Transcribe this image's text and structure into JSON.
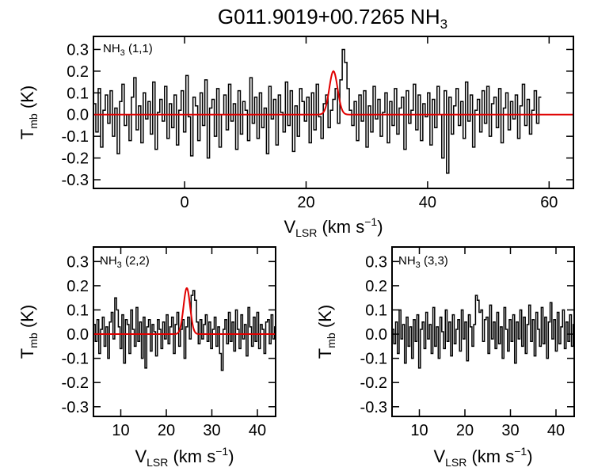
{
  "figure_title": {
    "text": "G011.9019+00.7265 NH",
    "sub": "3"
  },
  "chart_data": [
    {
      "type": "line",
      "panel": "NH3 (1,1)",
      "label": {
        "main": "NH",
        "sub": "3",
        "rest": " (1,1)"
      },
      "xlabel": {
        "main": "V",
        "sub": "LSR",
        "rest": " (km s",
        "sup": "−1",
        "close": ")"
      },
      "ylabel": {
        "main": "T",
        "sub": "mb",
        "rest": " (K)"
      },
      "xlim": [
        -15,
        64
      ],
      "ylim": [
        -0.34,
        0.36
      ],
      "xticks": [
        0,
        20,
        40,
        60
      ],
      "yticks": [
        -0.3,
        -0.2,
        -0.1,
        0.0,
        0.1,
        0.2,
        0.3
      ],
      "spectrum": {
        "name": "observed spectrum",
        "color": "#000000",
        "x_start": -15,
        "x_step": 0.39,
        "values": [
          0.05,
          -0.08,
          0.12,
          -0.15,
          0.02,
          0.09,
          -0.04,
          0.11,
          -0.1,
          0.03,
          -0.18,
          0.06,
          0.14,
          -0.05,
          0.0,
          -0.12,
          0.08,
          0.17,
          -0.07,
          0.04,
          -0.13,
          0.1,
          -0.02,
          0.06,
          -0.09,
          0.15,
          -0.16,
          0.01,
          0.07,
          -0.03,
          0.13,
          -0.11,
          0.05,
          -0.06,
          0.09,
          -0.14,
          0.02,
          0.11,
          -0.08,
          0.18,
          -0.01,
          -0.19,
          0.08,
          0.04,
          -0.12,
          0.1,
          -0.05,
          0.16,
          -0.2,
          0.03,
          0.07,
          -0.1,
          0.12,
          -0.15,
          0.0,
          0.09,
          -0.07,
          0.14,
          -0.03,
          0.05,
          -0.16,
          0.11,
          -0.09,
          0.06,
          0.02,
          -0.12,
          0.17,
          -0.04,
          0.08,
          -0.11,
          0.1,
          -0.06,
          0.03,
          -0.18,
          0.13,
          -0.02,
          0.07,
          -0.14,
          0.09,
          0.01,
          -0.08,
          0.15,
          -0.05,
          0.11,
          -0.17,
          0.04,
          -0.1,
          0.12,
          0.06,
          -0.03,
          0.08,
          -0.13,
          0.1,
          -0.07,
          0.14,
          -0.01,
          -0.11,
          0.05,
          0.09,
          -0.06,
          0.02,
          0.07,
          0.12,
          -0.04,
          0.16,
          0.3,
          0.24,
          0.12,
          0.02,
          -0.05,
          0.06,
          -0.12,
          0.09,
          -0.03,
          0.11,
          -0.15,
          0.04,
          -0.08,
          0.13,
          -0.02,
          0.07,
          -0.1,
          0.01,
          0.1,
          -0.13,
          0.06,
          -0.05,
          0.12,
          -0.09,
          0.03,
          0.08,
          -0.16,
          0.11,
          -0.04,
          0.02,
          0.14,
          -0.07,
          0.09,
          -0.12,
          0.05,
          -0.01,
          0.1,
          -0.14,
          0.07,
          -0.06,
          0.13,
          0.0,
          -0.2,
          0.11,
          -0.27,
          0.08,
          -0.09,
          0.04,
          0.12,
          -0.05,
          0.06,
          -0.11,
          0.15,
          -0.03,
          0.09,
          -0.15,
          0.02,
          0.07,
          -0.08,
          0.11,
          -0.04,
          0.13,
          -0.1,
          0.05,
          0.08,
          -0.06,
          0.12,
          -0.13,
          0.03,
          0.1,
          -0.07,
          0.06,
          -0.02,
          0.09,
          -0.11,
          0.04,
          0.14,
          -0.05,
          0.07,
          -0.09,
          0.02,
          0.11,
          -0.04,
          0.08
        ]
      },
      "fit": {
        "name": "Gaussian fit",
        "color": "#e00000",
        "amplitude": 0.2,
        "center": 24.5,
        "fwhm": 1.6
      }
    },
    {
      "type": "line",
      "panel": "NH3 (2,2)",
      "label": {
        "main": "NH",
        "sub": "3",
        "rest": " (2,2)"
      },
      "xlabel": {
        "main": "V",
        "sub": "LSR",
        "rest": " (km s",
        "sup": "−1",
        "close": ")"
      },
      "ylabel": {
        "main": "T",
        "sub": "mb",
        "rest": " (K)"
      },
      "xlim": [
        4,
        44
      ],
      "ylim": [
        -0.34,
        0.36
      ],
      "xticks": [
        10,
        20,
        30,
        40
      ],
      "yticks": [
        -0.3,
        -0.2,
        -0.1,
        0.0,
        0.1,
        0.2,
        0.3
      ],
      "spectrum": {
        "name": "observed spectrum",
        "color": "#000000",
        "x_start": 4,
        "x_step": 0.39,
        "values": [
          0.04,
          -0.03,
          0.06,
          -0.08,
          0.02,
          0.07,
          -0.05,
          0.03,
          -0.1,
          0.05,
          0.09,
          -0.02,
          0.15,
          0.1,
          0.03,
          -0.06,
          0.08,
          -0.12,
          0.06,
          0.04,
          -0.08,
          0.1,
          0.02,
          -0.05,
          0.11,
          -0.03,
          0.05,
          -0.1,
          0.07,
          -0.14,
          0.03,
          0.06,
          -0.07,
          0.04,
          0.01,
          -0.09,
          0.06,
          0.02,
          -0.06,
          0.05,
          -0.02,
          0.08,
          -0.04,
          0.03,
          0.07,
          -0.08,
          0.04,
          0.09,
          -0.05,
          0.02,
          0.06,
          -0.1,
          0.03,
          0.07,
          -0.02,
          0.16,
          0.18,
          0.14,
          0.05,
          -0.04,
          0.06,
          -0.02,
          0.04,
          0.08,
          -0.03,
          0.05,
          -0.06,
          0.02,
          0.07,
          -0.05,
          0.03,
          -0.08,
          -0.15,
          0.02,
          0.06,
          -0.04,
          0.09,
          -0.03,
          0.05,
          -0.07,
          0.1,
          0.02,
          -0.06,
          0.08,
          -0.02,
          0.04,
          -0.09,
          0.11,
          0.03,
          -0.05,
          0.07,
          -0.03,
          0.09,
          -0.06,
          0.04,
          0.02,
          -0.08,
          0.05,
          0.06,
          -0.04,
          0.08,
          -0.02,
          0.03
        ]
      },
      "fit": {
        "name": "Gaussian fit",
        "color": "#e00000",
        "amplitude": 0.19,
        "center": 24.5,
        "fwhm": 1.7
      }
    },
    {
      "type": "line",
      "panel": "NH3 (3,3)",
      "label": {
        "main": "NH",
        "sub": "3",
        "rest": " (3,3)"
      },
      "xlabel": {
        "main": "V",
        "sub": "LSR",
        "rest": " (km s",
        "sup": "−1",
        "close": ")"
      },
      "ylabel": {
        "main": "T",
        "sub": "mb",
        "rest": " (K)"
      },
      "xlim": [
        4,
        44
      ],
      "ylim": [
        -0.34,
        0.36
      ],
      "xticks": [
        10,
        20,
        30,
        40
      ],
      "yticks": [
        -0.3,
        -0.2,
        -0.1,
        0.0,
        0.1,
        0.2,
        0.3
      ],
      "spectrum": {
        "name": "observed spectrum",
        "color": "#000000",
        "x_start": 4,
        "x_step": 0.39,
        "values": [
          0.02,
          -0.04,
          0.05,
          -0.08,
          0.1,
          -0.02,
          0.04,
          -0.12,
          0.07,
          -0.05,
          0.03,
          -0.1,
          0.06,
          -0.03,
          0.08,
          -0.14,
          0.02,
          0.05,
          -0.06,
          0.09,
          -0.02,
          0.04,
          -0.08,
          0.11,
          -0.05,
          0.03,
          -0.1,
          0.07,
          0.01,
          -0.06,
          0.1,
          -0.03,
          0.05,
          -0.09,
          0.08,
          -0.04,
          0.02,
          0.06,
          -0.07,
          0.1,
          -0.02,
          0.05,
          -0.11,
          0.08,
          0.03,
          -0.05,
          0.04,
          0.16,
          0.14,
          0.09,
          0.1,
          -0.03,
          0.06,
          0.07,
          -0.08,
          0.12,
          -0.02,
          0.05,
          -0.06,
          0.09,
          -0.04,
          0.03,
          -0.1,
          0.11,
          0.02,
          -0.07,
          0.06,
          -0.03,
          0.08,
          -0.12,
          0.05,
          -0.02,
          0.1,
          -0.05,
          0.07,
          -0.08,
          0.04,
          0.12,
          -0.03,
          0.06,
          -0.09,
          0.09,
          0.02,
          -0.05,
          0.11,
          -0.04,
          0.07,
          -0.1,
          0.05,
          0.13,
          -0.02,
          0.06,
          -0.07,
          0.09,
          -0.04,
          0.03,
          0.1,
          -0.06,
          0.05,
          -0.03,
          0.08,
          -0.05,
          0.04
        ]
      },
      "fit": null
    }
  ]
}
